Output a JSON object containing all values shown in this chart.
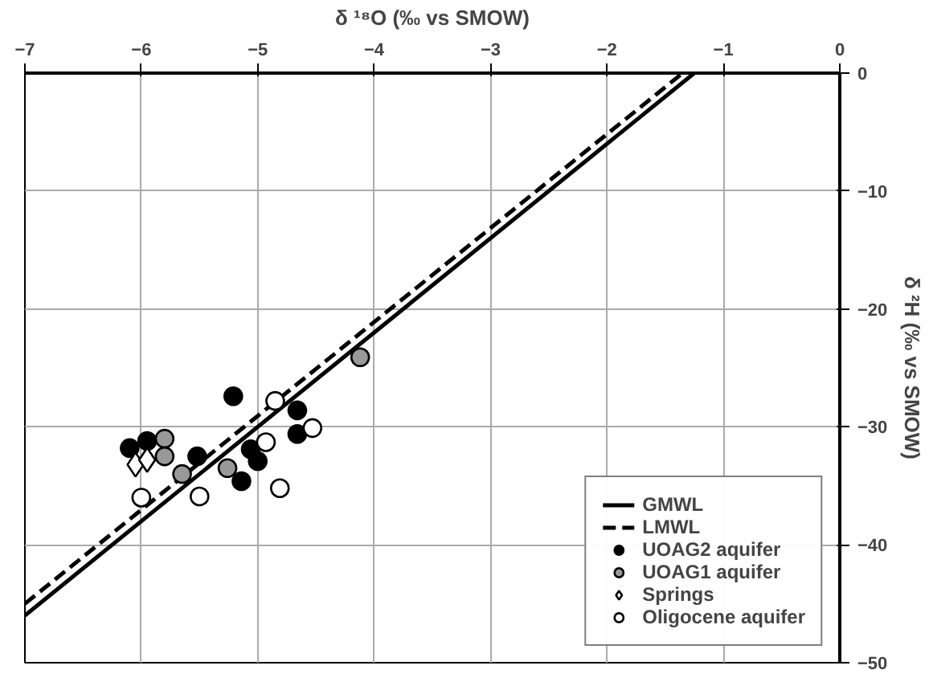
{
  "chart_data": {
    "type": "scatter",
    "xlabel": "δ ¹⁸O (‰ vs SMOW)",
    "ylabel": "δ ²H (‰ vs SMOW)",
    "xlim": [
      -7,
      0
    ],
    "xticks": [
      -7,
      -6,
      -5,
      -4,
      -3,
      -2,
      -1,
      0
    ],
    "ylim": [
      -50,
      0
    ],
    "yticks": [
      0,
      -10,
      -20,
      -30,
      -40,
      -50
    ],
    "grid": true,
    "legend": "bottom right",
    "series": [
      {
        "name": "GMWL",
        "type": "line",
        "line_style": "solid",
        "color": "#000000",
        "x": [
          -7,
          -1.25
        ],
        "values": [
          -46,
          0
        ]
      },
      {
        "name": "LMWL",
        "type": "line",
        "line_style": "dashed",
        "color": "#000000",
        "x": [
          -7,
          -1.35
        ],
        "values": [
          -45,
          0
        ]
      },
      {
        "name": "UOAG2 aquifer",
        "marker": "circle",
        "color": "#000000",
        "x": [
          -5.21,
          -4.66,
          -4.66,
          -5.06,
          -5.0,
          -5.14,
          -5.52,
          -6.1,
          -5.95
        ],
        "values": [
          -27.4,
          -28.6,
          -30.6,
          -31.9,
          -32.9,
          -34.6,
          -32.5,
          -31.8,
          -31.2
        ]
      },
      {
        "name": "UOAG1 aquifer",
        "marker": "circle",
        "color": "#999999",
        "x": [
          -4.12,
          -5.26,
          -5.8,
          -5.8,
          -5.65
        ],
        "values": [
          -24.1,
          -33.5,
          -31.0,
          -32.5,
          -34.0
        ]
      },
      {
        "name": "Springs",
        "marker": "diamond",
        "color": "#ffffff",
        "x": [
          -6.05,
          -5.95
        ],
        "values": [
          -33.2,
          -32.8
        ]
      },
      {
        "name": "Oligocene aquifer",
        "marker": "circle",
        "color": "#ffffff",
        "x": [
          -4.85,
          -4.53,
          -4.93,
          -4.81,
          -5.5,
          -6.0
        ],
        "values": [
          -27.8,
          -30.1,
          -31.3,
          -35.2,
          -35.9,
          -36.0
        ]
      }
    ]
  }
}
